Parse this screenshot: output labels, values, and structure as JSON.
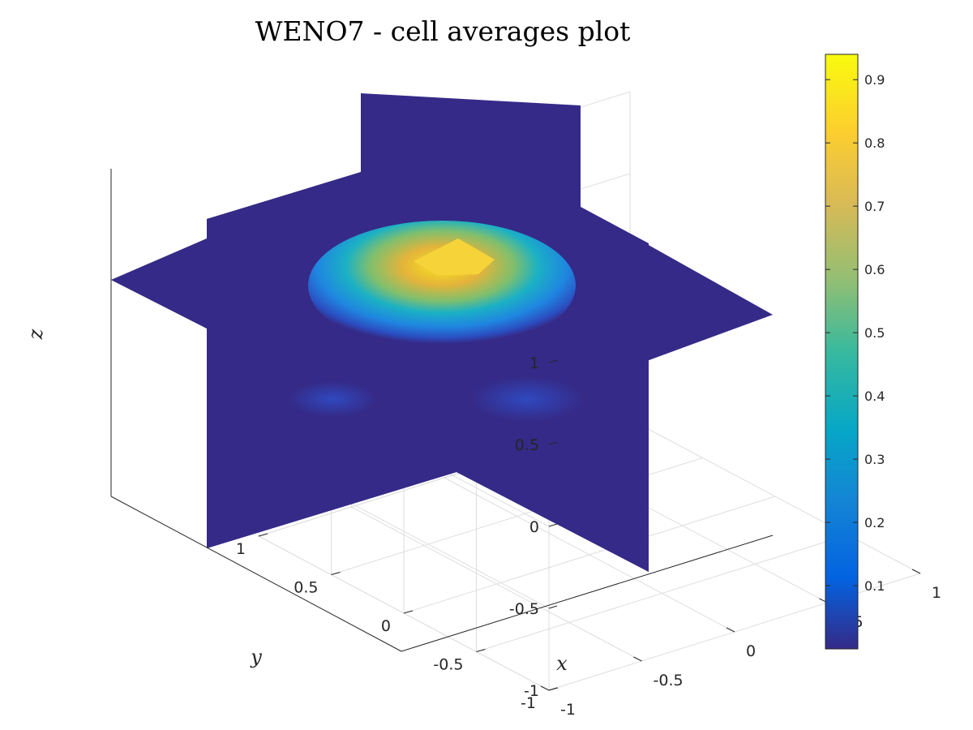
{
  "chart_data": {
    "type": "heatmap",
    "plot_kind": "3d-slice",
    "title": "WENO7 - cell averages plot",
    "xlabel": "x",
    "ylabel": "y",
    "zlabel": "z",
    "xlim": [
      -1,
      1
    ],
    "ylim": [
      -1,
      1
    ],
    "zlim": [
      -1,
      1
    ],
    "x_ticks": [
      "-1",
      "-0.5",
      "0",
      "0.5",
      "1"
    ],
    "y_ticks": [
      "-1",
      "-0.5",
      "0",
      "0.5",
      "1"
    ],
    "z_ticks": [
      "-1",
      "-0.5",
      "0",
      "0.5",
      "1"
    ],
    "slices": [
      {
        "plane": "x",
        "value": 0
      },
      {
        "plane": "y",
        "value": 0
      },
      {
        "plane": "z",
        "value": 0
      }
    ],
    "field": {
      "peak_value": 0.94,
      "peak_location": [
        0,
        0,
        0.5
      ],
      "min_value": 0.0,
      "description_visible": "single smooth bump centred near the top of the horizontal slice"
    },
    "colorbar": {
      "colormap": "parula",
      "range": [
        0,
        0.94
      ],
      "ticks": [
        "0.1",
        "0.2",
        "0.3",
        "0.4",
        "0.5",
        "0.6",
        "0.7",
        "0.8",
        "0.9"
      ],
      "location": "right"
    },
    "grid": true,
    "colors": {
      "background_slice": "#352a87",
      "axis": "#262626",
      "grid": "#dedede"
    }
  }
}
